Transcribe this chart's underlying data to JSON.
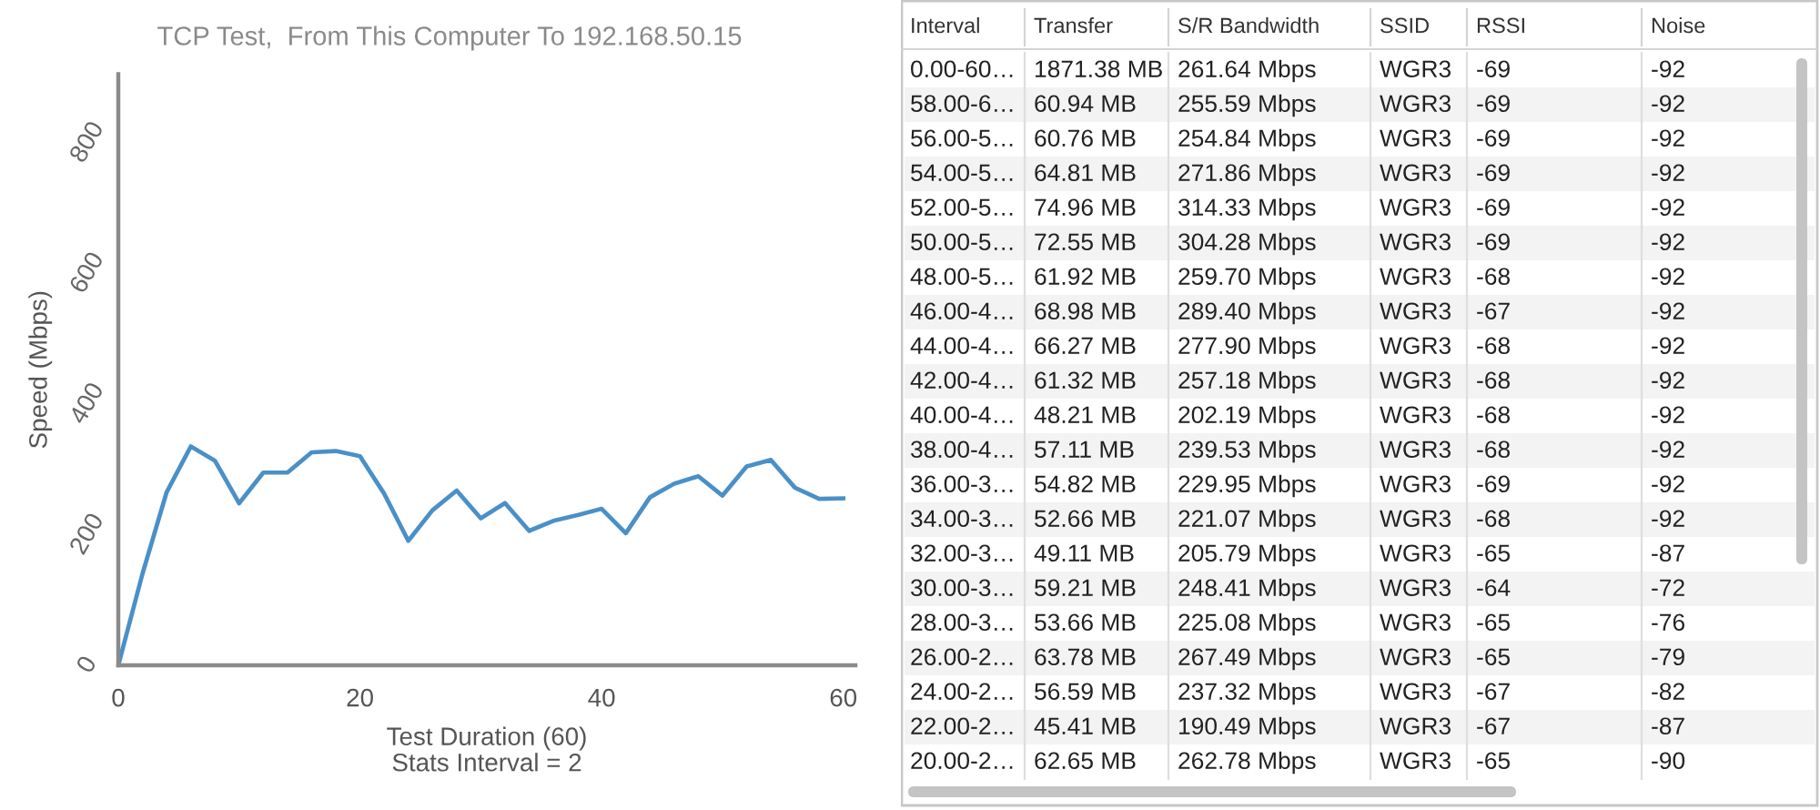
{
  "chart_data": [
    {
      "type": "line",
      "title": "TCP Test,  From This Computer To 192.168.50.15",
      "xlabel": "Test Duration (60)",
      "ylabel": "Speed (Mbps)",
      "annotations": [
        "Stats Interval = 2"
      ],
      "x": [
        0,
        2,
        4,
        6,
        8,
        10,
        12,
        14,
        16,
        18,
        20,
        22,
        24,
        26,
        28,
        30,
        32,
        34,
        36,
        38,
        40,
        42,
        44,
        46,
        48,
        50,
        52,
        54,
        56,
        58,
        60
      ],
      "series": [
        {
          "color": "#4a90c8",
          "values": [
            0,
            140,
            265,
            335,
            313,
            248,
            295,
            295,
            326,
            328,
            320,
            262.78,
            190.49,
            237.32,
            267.49,
            225.08,
            248.41,
            205.79,
            221.07,
            229.95,
            239.53,
            202.19,
            257.18,
            277.9,
            289.4,
            259.7,
            304.28,
            314.33,
            271.86,
            254.84,
            255.59
          ]
        }
      ],
      "xlim": [
        0,
        61
      ],
      "ylim": [
        0,
        905
      ],
      "xticks": [
        0,
        20,
        40,
        60
      ],
      "yticks": [
        0,
        200,
        400,
        600,
        800
      ],
      "line_style": "solid"
    },
    {
      "type": "other",
      "categories": [
        "Interval",
        "Transfer",
        "S/R Bandwidth",
        "SSID",
        "RSSI",
        "Noise"
      ],
      "cell_labels": [
        [
          "0.00-60…",
          "1871.38 MB",
          "261.64 Mbps",
          "WGR3",
          "-69",
          "-92"
        ],
        [
          "58.00-6…",
          "60.94 MB",
          "255.59 Mbps",
          "WGR3",
          "-69",
          "-92"
        ],
        [
          "56.00-5…",
          "60.76 MB",
          "254.84 Mbps",
          "WGR3",
          "-69",
          "-92"
        ],
        [
          "54.00-5…",
          "64.81 MB",
          "271.86 Mbps",
          "WGR3",
          "-69",
          "-92"
        ],
        [
          "52.00-5…",
          "74.96 MB",
          "314.33 Mbps",
          "WGR3",
          "-69",
          "-92"
        ],
        [
          "50.00-5…",
          "72.55 MB",
          "304.28 Mbps",
          "WGR3",
          "-69",
          "-92"
        ],
        [
          "48.00-5…",
          "61.92 MB",
          "259.70 Mbps",
          "WGR3",
          "-68",
          "-92"
        ],
        [
          "46.00-4…",
          "68.98 MB",
          "289.40 Mbps",
          "WGR3",
          "-67",
          "-92"
        ],
        [
          "44.00-4…",
          "66.27 MB",
          "277.90 Mbps",
          "WGR3",
          "-68",
          "-92"
        ],
        [
          "42.00-4…",
          "61.32 MB",
          "257.18 Mbps",
          "WGR3",
          "-68",
          "-92"
        ],
        [
          "40.00-4…",
          "48.21 MB",
          "202.19 Mbps",
          "WGR3",
          "-68",
          "-92"
        ],
        [
          "38.00-4…",
          "57.11 MB",
          "239.53 Mbps",
          "WGR3",
          "-68",
          "-92"
        ],
        [
          "36.00-3…",
          "54.82 MB",
          "229.95 Mbps",
          "WGR3",
          "-69",
          "-92"
        ],
        [
          "34.00-3…",
          "52.66 MB",
          "221.07 Mbps",
          "WGR3",
          "-68",
          "-92"
        ],
        [
          "32.00-3…",
          "49.11 MB",
          "205.79 Mbps",
          "WGR3",
          "-65",
          "-87"
        ],
        [
          "30.00-3…",
          "59.21 MB",
          "248.41 Mbps",
          "WGR3",
          "-64",
          "-72"
        ],
        [
          "28.00-3…",
          "53.66 MB",
          "225.08 Mbps",
          "WGR3",
          "-65",
          "-76"
        ],
        [
          "26.00-2…",
          "63.78 MB",
          "267.49 Mbps",
          "WGR3",
          "-65",
          "-79"
        ],
        [
          "24.00-2…",
          "56.59 MB",
          "237.32 Mbps",
          "WGR3",
          "-67",
          "-82"
        ],
        [
          "22.00-2…",
          "45.41 MB",
          "190.49 Mbps",
          "WGR3",
          "-67",
          "-87"
        ],
        [
          "20.00-2…",
          "62.65 MB",
          "262.78 Mbps",
          "WGR3",
          "-65",
          "-90"
        ]
      ]
    }
  ]
}
